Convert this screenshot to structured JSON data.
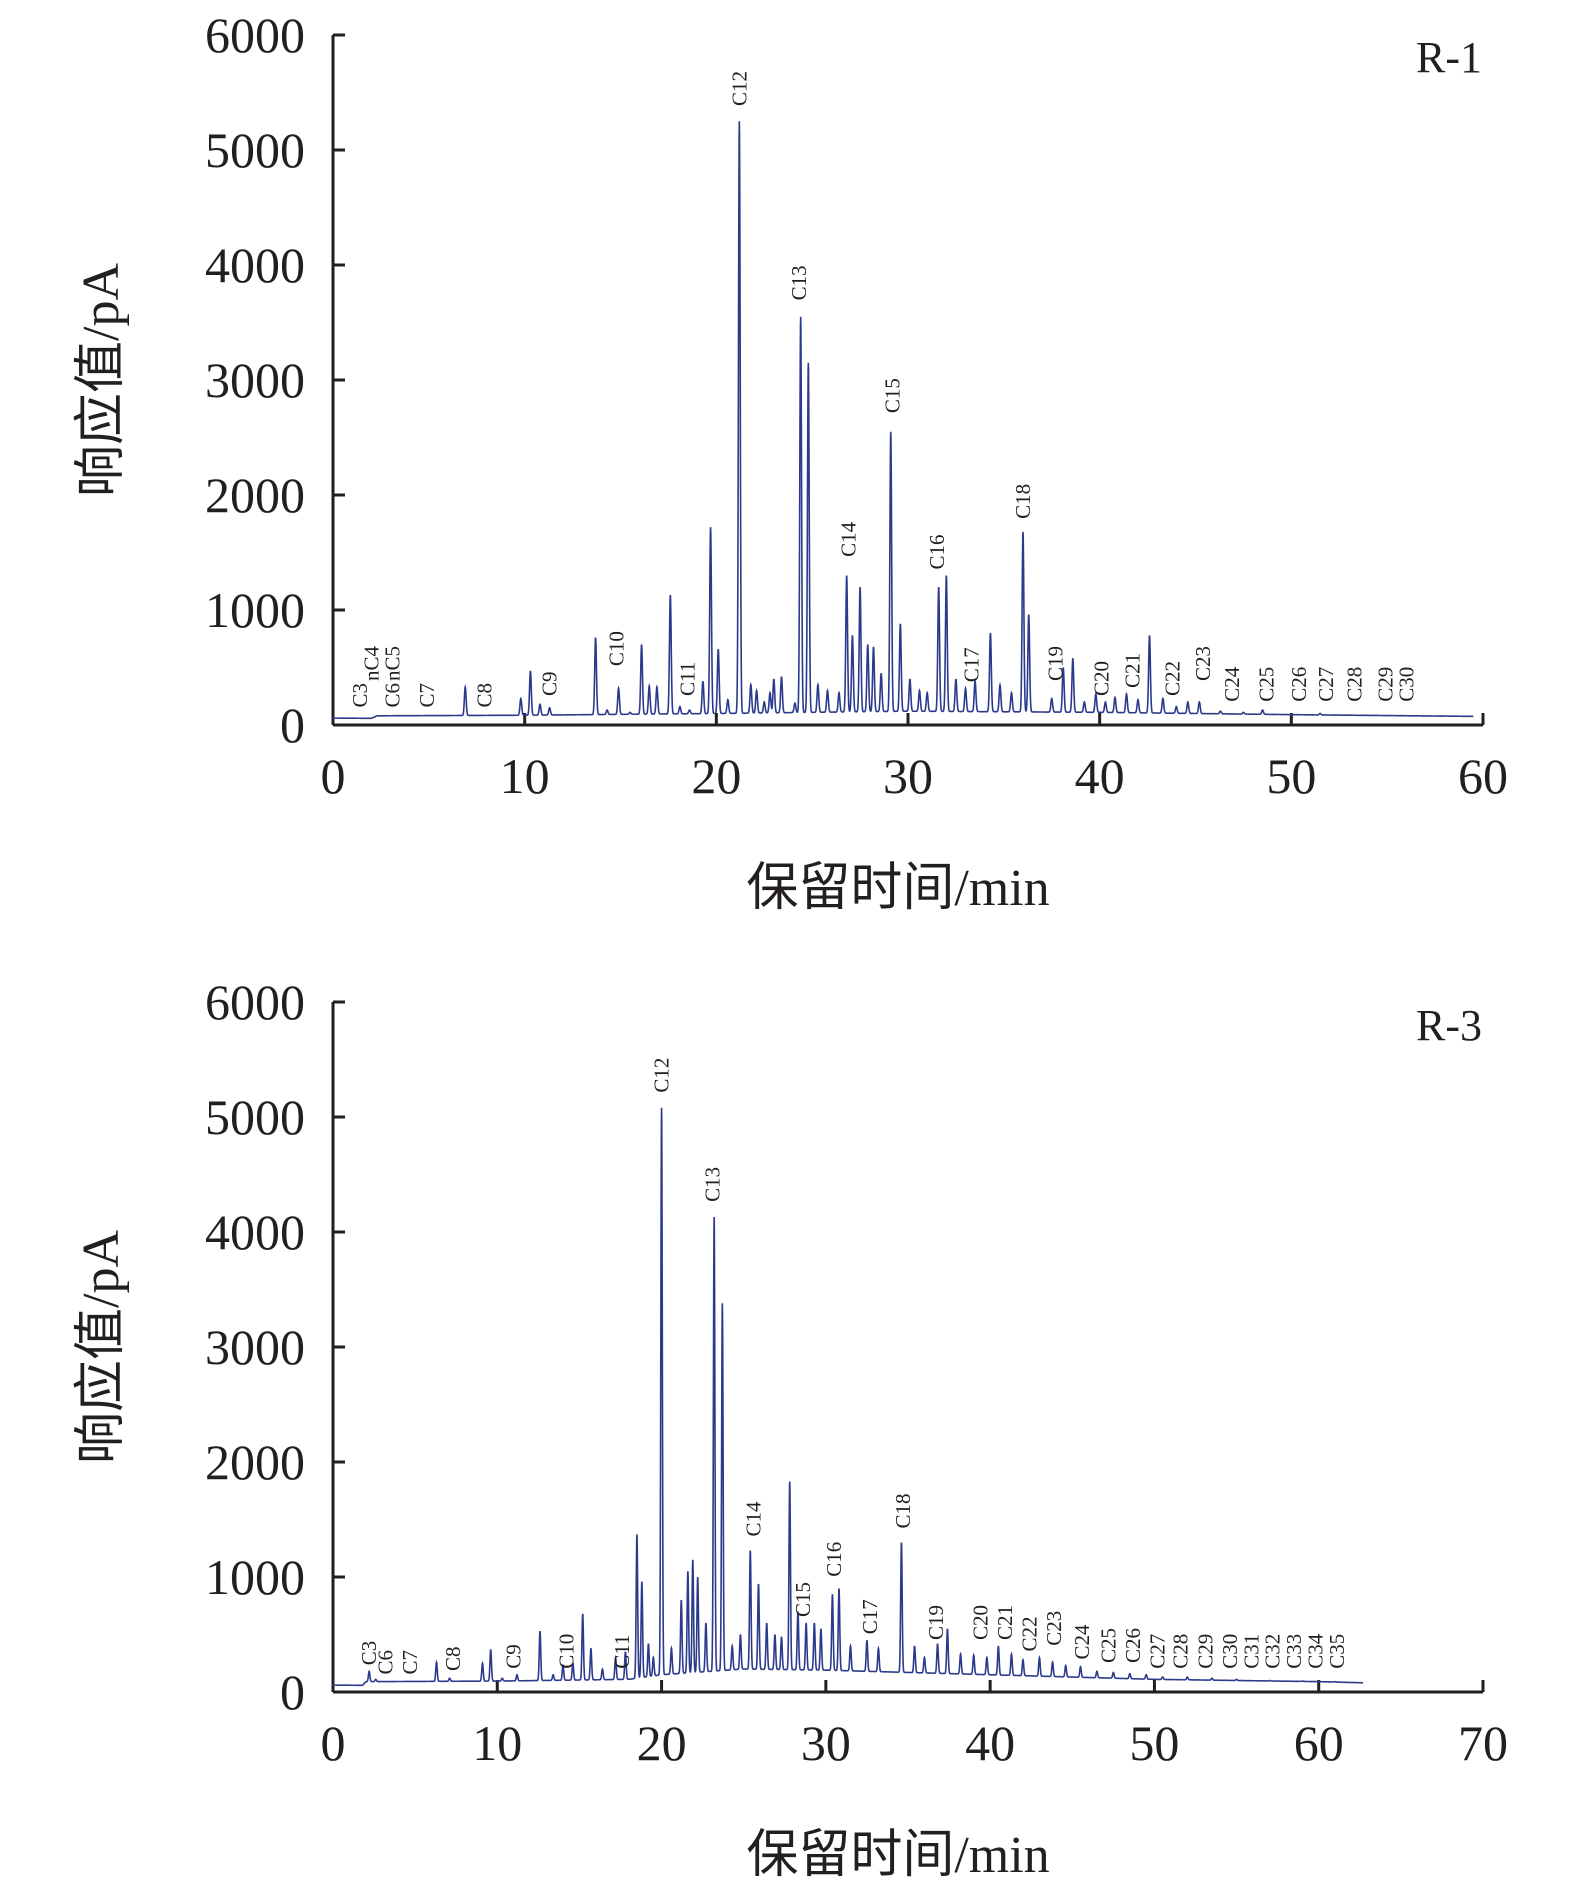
{
  "chart_data": [
    {
      "type": "line",
      "panel_label": "R-1",
      "xlabel": "保留时间/min",
      "ylabel": "响应值/pA",
      "xlim": [
        0,
        60
      ],
      "ylim": [
        0,
        6000
      ],
      "xticks": [
        0,
        10,
        20,
        30,
        40,
        50,
        60
      ],
      "yticks": [
        0,
        1000,
        2000,
        3000,
        4000,
        5000,
        6000
      ],
      "trace_end": 59.5,
      "baseline": [
        [
          0,
          60
        ],
        [
          2,
          58
        ],
        [
          2.3,
          80
        ],
        [
          10,
          85
        ],
        [
          20,
          100
        ],
        [
          30,
          120
        ],
        [
          40,
          110
        ],
        [
          50,
          90
        ],
        [
          59.5,
          75
        ]
      ],
      "peaks": [
        [
          3.2,
          40
        ],
        [
          4.2,
          50
        ],
        [
          4.8,
          35
        ],
        [
          6.9,
          330
        ],
        [
          8.0,
          60
        ],
        [
          9.8,
          230
        ],
        [
          10.3,
          470
        ],
        [
          10.8,
          180
        ],
        [
          11.3,
          150
        ],
        [
          13.7,
          760
        ],
        [
          14.3,
          130
        ],
        [
          14.9,
          320
        ],
        [
          15.5,
          110
        ],
        [
          16.1,
          700
        ],
        [
          16.5,
          340
        ],
        [
          16.9,
          330
        ],
        [
          17.6,
          1130
        ],
        [
          18.1,
          160
        ],
        [
          18.6,
          130
        ],
        [
          19.3,
          380
        ],
        [
          19.7,
          1720
        ],
        [
          20.1,
          660
        ],
        [
          20.6,
          220
        ],
        [
          21.2,
          5250
        ],
        [
          21.8,
          350
        ],
        [
          22.1,
          300
        ],
        [
          22.5,
          200
        ],
        [
          22.8,
          280
        ],
        [
          23.0,
          400
        ],
        [
          23.4,
          420
        ],
        [
          24.1,
          190
        ],
        [
          24.4,
          3550
        ],
        [
          24.8,
          3150
        ],
        [
          25.3,
          350
        ],
        [
          25.8,
          300
        ],
        [
          26.4,
          280
        ],
        [
          26.8,
          1300
        ],
        [
          27.1,
          780
        ],
        [
          27.5,
          1200
        ],
        [
          27.9,
          700
        ],
        [
          28.2,
          680
        ],
        [
          28.6,
          450
        ],
        [
          29.1,
          2550
        ],
        [
          29.6,
          880
        ],
        [
          30.1,
          400
        ],
        [
          30.6,
          300
        ],
        [
          31.0,
          280
        ],
        [
          31.6,
          1200
        ],
        [
          32.0,
          1300
        ],
        [
          32.5,
          400
        ],
        [
          33.0,
          320
        ],
        [
          33.5,
          380
        ],
        [
          34.3,
          800
        ],
        [
          34.8,
          350
        ],
        [
          35.4,
          280
        ],
        [
          36.0,
          1680
        ],
        [
          36.3,
          960
        ],
        [
          37.5,
          230
        ],
        [
          38.1,
          500
        ],
        [
          38.6,
          580
        ],
        [
          39.2,
          200
        ],
        [
          39.8,
          270
        ],
        [
          40.3,
          200
        ],
        [
          40.8,
          240
        ],
        [
          41.4,
          270
        ],
        [
          42.0,
          220
        ],
        [
          42.6,
          780
        ],
        [
          43.3,
          230
        ],
        [
          44.0,
          160
        ],
        [
          44.6,
          200
        ],
        [
          45.2,
          200
        ],
        [
          46.3,
          120
        ],
        [
          47.5,
          110
        ],
        [
          48.5,
          130
        ],
        [
          50.0,
          90
        ],
        [
          51.5,
          100
        ],
        [
          53.0,
          80
        ],
        [
          54.5,
          70
        ]
      ],
      "peak_labels": [
        {
          "text": "C3",
          "x": 1.4,
          "y": 100
        },
        {
          "text": "nC4",
          "x": 2.0,
          "y": 330
        },
        {
          "text": "C6",
          "x": 3.1,
          "y": 100
        },
        {
          "text": "nC5",
          "x": 3.1,
          "y": 330
        },
        {
          "text": "C7",
          "x": 4.9,
          "y": 100
        },
        {
          "text": "C8",
          "x": 7.9,
          "y": 100
        },
        {
          "text": "C9",
          "x": 11.3,
          "y": 200
        },
        {
          "text": "C10",
          "x": 14.8,
          "y": 460
        },
        {
          "text": "C11",
          "x": 18.5,
          "y": 200
        },
        {
          "text": "C12",
          "x": 21.2,
          "y": 5330
        },
        {
          "text": "C13",
          "x": 24.3,
          "y": 3640
        },
        {
          "text": "C14",
          "x": 26.9,
          "y": 1410
        },
        {
          "text": "C15",
          "x": 29.2,
          "y": 2660
        },
        {
          "text": "C16",
          "x": 31.5,
          "y": 1300
        },
        {
          "text": "C17",
          "x": 33.3,
          "y": 320
        },
        {
          "text": "C18",
          "x": 36.0,
          "y": 1740
        },
        {
          "text": "C19",
          "x": 37.7,
          "y": 330
        },
        {
          "text": "C20",
          "x": 40.1,
          "y": 200
        },
        {
          "text": "C21",
          "x": 41.7,
          "y": 270
        },
        {
          "text": "C22",
          "x": 43.8,
          "y": 200
        },
        {
          "text": "C23",
          "x": 45.4,
          "y": 330
        },
        {
          "text": "C24",
          "x": 46.9,
          "y": 150
        },
        {
          "text": "C25",
          "x": 48.7,
          "y": 150
        },
        {
          "text": "C26",
          "x": 50.4,
          "y": 150
        },
        {
          "text": "C27",
          "x": 51.8,
          "y": 150
        },
        {
          "text": "C28",
          "x": 53.3,
          "y": 150
        },
        {
          "text": "C29",
          "x": 54.9,
          "y": 150
        },
        {
          "text": "C30",
          "x": 56.0,
          "y": 150
        }
      ]
    },
    {
      "type": "line",
      "panel_label": "R-3",
      "xlabel": "保留时间/min",
      "ylabel": "响应值/pA",
      "xlim": [
        0,
        70
      ],
      "ylim": [
        0,
        6000
      ],
      "xticks": [
        0,
        10,
        20,
        30,
        40,
        50,
        60,
        70
      ],
      "yticks": [
        0,
        1000,
        2000,
        3000,
        4000,
        5000,
        6000
      ],
      "trace_end": 62.7,
      "baseline": [
        [
          0,
          60
        ],
        [
          1.8,
          58
        ],
        [
          2.0,
          90
        ],
        [
          10,
          95
        ],
        [
          18,
          110
        ],
        [
          20,
          150
        ],
        [
          25,
          200
        ],
        [
          30,
          190
        ],
        [
          35,
          170
        ],
        [
          40,
          150
        ],
        [
          45,
          130
        ],
        [
          50,
          110
        ],
        [
          55,
          100
        ],
        [
          60,
          90
        ],
        [
          62.7,
          80
        ]
      ],
      "peaks": [
        [
          2.2,
          180
        ],
        [
          2.6,
          110
        ],
        [
          3.3,
          90
        ],
        [
          6.3,
          260
        ],
        [
          7.1,
          120
        ],
        [
          9.1,
          250
        ],
        [
          9.6,
          370
        ],
        [
          10.3,
          120
        ],
        [
          11.2,
          150
        ],
        [
          12.6,
          530
        ],
        [
          13.4,
          150
        ],
        [
          14.0,
          230
        ],
        [
          14.6,
          250
        ],
        [
          15.2,
          680
        ],
        [
          15.7,
          380
        ],
        [
          16.4,
          200
        ],
        [
          17.2,
          300
        ],
        [
          17.8,
          350
        ],
        [
          18.5,
          1370
        ],
        [
          18.8,
          960
        ],
        [
          19.2,
          420
        ],
        [
          19.5,
          300
        ],
        [
          20.0,
          5080
        ],
        [
          20.6,
          380
        ],
        [
          21.2,
          800
        ],
        [
          21.6,
          1050
        ],
        [
          21.9,
          1150
        ],
        [
          22.2,
          1000
        ],
        [
          22.7,
          600
        ],
        [
          23.2,
          4130
        ],
        [
          23.7,
          3380
        ],
        [
          24.3,
          400
        ],
        [
          24.8,
          500
        ],
        [
          25.4,
          1230
        ],
        [
          25.9,
          940
        ],
        [
          26.4,
          600
        ],
        [
          26.9,
          500
        ],
        [
          27.3,
          480
        ],
        [
          27.8,
          1830
        ],
        [
          28.3,
          700
        ],
        [
          28.8,
          600
        ],
        [
          29.3,
          600
        ],
        [
          29.7,
          550
        ],
        [
          30.4,
          850
        ],
        [
          30.8,
          900
        ],
        [
          31.5,
          400
        ],
        [
          32.5,
          450
        ],
        [
          33.2,
          380
        ],
        [
          34.6,
          1300
        ],
        [
          35.4,
          400
        ],
        [
          36.0,
          300
        ],
        [
          36.8,
          420
        ],
        [
          37.4,
          550
        ],
        [
          38.2,
          330
        ],
        [
          39.0,
          320
        ],
        [
          39.8,
          300
        ],
        [
          40.5,
          400
        ],
        [
          41.3,
          330
        ],
        [
          42.0,
          280
        ],
        [
          43.0,
          300
        ],
        [
          43.8,
          260
        ],
        [
          44.6,
          230
        ],
        [
          45.5,
          220
        ],
        [
          46.5,
          180
        ],
        [
          47.5,
          170
        ],
        [
          48.5,
          160
        ],
        [
          49.5,
          150
        ],
        [
          50.5,
          130
        ],
        [
          52.0,
          130
        ],
        [
          53.5,
          120
        ],
        [
          55.0,
          110
        ],
        [
          57.0,
          100
        ],
        [
          59.0,
          95
        ],
        [
          61.0,
          90
        ]
      ],
      "peak_labels": [
        {
          "text": "C3",
          "x": 2.2,
          "y": 180
        },
        {
          "text": "C6",
          "x": 3.2,
          "y": 100
        },
        {
          "text": "C7",
          "x": 4.7,
          "y": 100
        },
        {
          "text": "C8",
          "x": 7.3,
          "y": 130
        },
        {
          "text": "C9",
          "x": 11.0,
          "y": 150
        },
        {
          "text": "C10",
          "x": 14.2,
          "y": 150
        },
        {
          "text": "C11",
          "x": 17.6,
          "y": 150
        },
        {
          "text": "C12",
          "x": 20.0,
          "y": 5160
        },
        {
          "text": "C13",
          "x": 23.1,
          "y": 4210
        },
        {
          "text": "C14",
          "x": 25.6,
          "y": 1300
        },
        {
          "text": "C15",
          "x": 28.6,
          "y": 600
        },
        {
          "text": "C16",
          "x": 30.5,
          "y": 950
        },
        {
          "text": "C17",
          "x": 32.7,
          "y": 450
        },
        {
          "text": "C18",
          "x": 34.7,
          "y": 1370
        },
        {
          "text": "C19",
          "x": 36.7,
          "y": 400
        },
        {
          "text": "C20",
          "x": 39.4,
          "y": 400
        },
        {
          "text": "C21",
          "x": 40.9,
          "y": 400
        },
        {
          "text": "C22",
          "x": 42.4,
          "y": 300
        },
        {
          "text": "C23",
          "x": 43.9,
          "y": 350
        },
        {
          "text": "C24",
          "x": 45.6,
          "y": 230
        },
        {
          "text": "C25",
          "x": 47.2,
          "y": 200
        },
        {
          "text": "C26",
          "x": 48.7,
          "y": 200
        },
        {
          "text": "C27",
          "x": 50.2,
          "y": 150
        },
        {
          "text": "C28",
          "x": 51.6,
          "y": 150
        },
        {
          "text": "C29",
          "x": 53.1,
          "y": 150
        },
        {
          "text": "C30",
          "x": 54.6,
          "y": 150
        },
        {
          "text": "C31",
          "x": 55.9,
          "y": 150
        },
        {
          "text": "C32",
          "x": 57.2,
          "y": 150
        },
        {
          "text": "C33",
          "x": 58.5,
          "y": 150
        },
        {
          "text": "C34",
          "x": 59.8,
          "y": 150
        },
        {
          "text": "C35",
          "x": 61.1,
          "y": 150
        }
      ]
    }
  ]
}
